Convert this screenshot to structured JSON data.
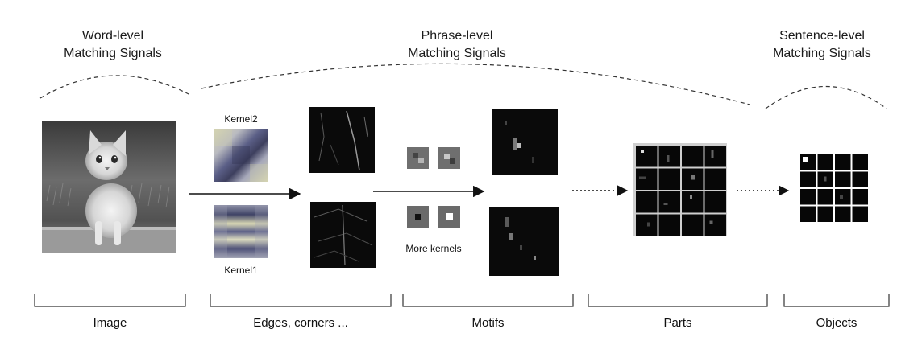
{
  "headers": {
    "word": [
      "Word-level",
      "Matching Signals"
    ],
    "phrase": [
      "Phrase-level",
      "Matching Signals"
    ],
    "sentence": [
      "Sentence-level",
      "Matching Signals"
    ]
  },
  "kernel_labels": {
    "kernel2": "Kernel2",
    "kernel1": "Kernel1",
    "more": "More kernels"
  },
  "stages": {
    "image": "Image",
    "edges": "Edges, corners ...",
    "motifs": "Motifs",
    "parts": "Parts",
    "objects": "Objects"
  },
  "colors": {
    "line": "#111111",
    "dark_map": "#0a0a0a",
    "kernel_blue": "#5b5f87",
    "kernel_cream": "#d8d7b4"
  },
  "icons": [
    "kitten-photo",
    "kernel-patch",
    "feature-map",
    "motif-patch",
    "parts-grid",
    "objects-grid"
  ]
}
